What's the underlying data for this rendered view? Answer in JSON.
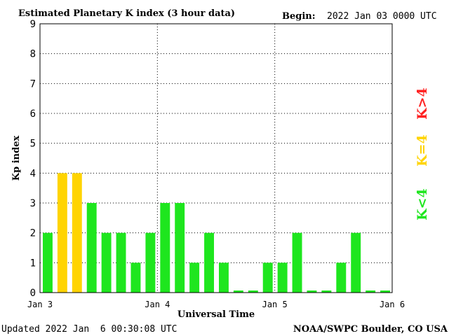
{
  "header": {
    "title": "Estimated Planetary K index (3 hour data)",
    "begin_label": "Begin:",
    "begin_value": "2022 Jan 03 0000 UTC"
  },
  "footer": {
    "updated": "Updated 2022 Jan  6 00:30:08 UTC",
    "source": "NOAA/SWPC Boulder, CO USA"
  },
  "legend": {
    "high": "K>4",
    "mid": "K=4",
    "low": "K<4"
  },
  "colors": {
    "low": "#1ee61e",
    "mid": "#ffd400",
    "high": "#ff2020",
    "grid": "#000000"
  },
  "chart_data": {
    "type": "bar",
    "title": "Estimated Planetary K index (3 hour data)",
    "xlabel": "Universal Time",
    "ylabel": "Kp index",
    "ylim": [
      0,
      9
    ],
    "yticks": [
      "0",
      "1",
      "2",
      "3",
      "4",
      "5",
      "6",
      "7",
      "8",
      "9"
    ],
    "xticks": [
      "Jan 3",
      "Jan 4",
      "Jan 5",
      "Jan 6"
    ],
    "grid": true,
    "interval_hours": 3,
    "values": [
      2,
      4,
      4,
      3,
      2,
      2,
      1,
      2,
      3,
      3,
      1,
      2,
      1,
      0,
      0,
      1,
      1,
      2,
      0,
      0,
      1,
      2,
      0,
      0
    ]
  }
}
